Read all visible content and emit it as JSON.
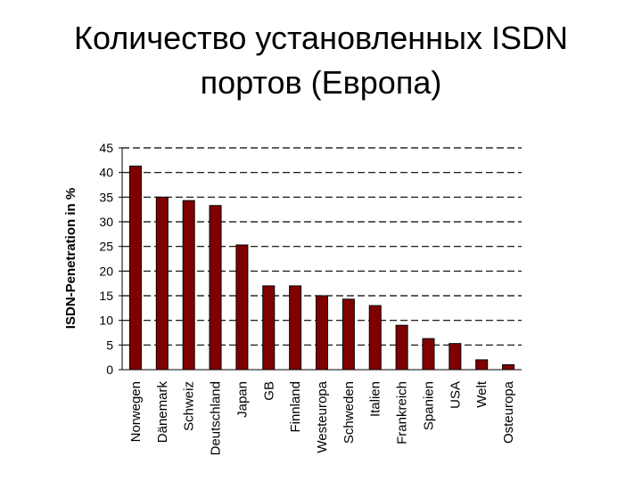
{
  "chart_data": {
    "type": "bar",
    "title": [
      "Количество установленных ISDN",
      "портов (Европа)"
    ],
    "y_label": "ISDN-Penetration in %",
    "categories": [
      "Norwegen",
      "Dänemark",
      "Schweiz",
      "Deutschland",
      "Japan",
      "GB",
      "Finnland",
      "Westeuropa",
      "Schweden",
      "Italien",
      "Frankreich",
      "Spanien",
      "USA",
      "Welt",
      "Osteuropa"
    ],
    "values": [
      41.3,
      35,
      34.3,
      33.3,
      25.3,
      17,
      17,
      15,
      14.3,
      13,
      9,
      6.3,
      5.3,
      2,
      1
    ],
    "color": "#800000",
    "ylim": [
      0,
      45
    ],
    "yticks": [
      0,
      5,
      10,
      15,
      20,
      25,
      30,
      35,
      40,
      45
    ],
    "grid": true
  }
}
